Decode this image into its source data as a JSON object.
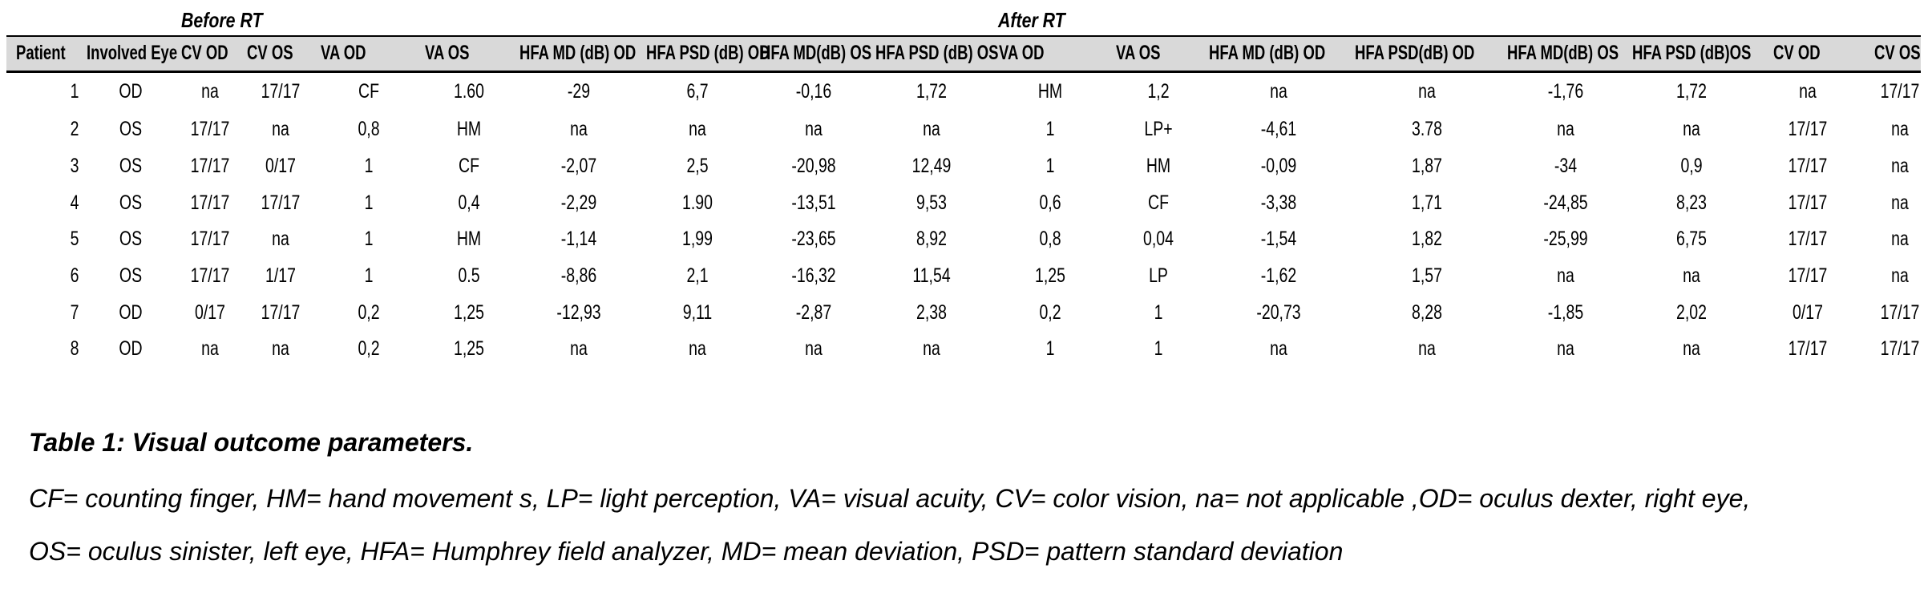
{
  "groups": {
    "before": "Before RT",
    "after": "After RT"
  },
  "headers": [
    "Patient",
    "Involved Eye",
    "CV OD",
    "CV OS",
    "VA OD",
    "VA OS",
    "HFA MD (dB) OD",
    "HFA PSD (dB) OD",
    "HFA MD(dB) OS",
    "HFA PSD (dB) OS",
    "VA  OD",
    "VA  OS",
    "HFA MD (dB) OD",
    "HFA PSD(dB) OD",
    "HFA MD(dB) OS",
    "HFA PSD (dB)OS",
    "CV OD",
    "CV OS"
  ],
  "rows": [
    [
      "1",
      "OD",
      "na",
      "17/17",
      "CF",
      "1.60",
      "-29",
      "6,7",
      "-0,16",
      "1,72",
      "HM",
      "1,2",
      "na",
      "na",
      "-1,76",
      "1,72",
      "na",
      "17/17"
    ],
    [
      "2",
      "OS",
      "17/17",
      "na",
      "0,8",
      "HM",
      "na",
      "na",
      "na",
      "na",
      "1",
      "LP+",
      "-4,61",
      "3.78",
      "na",
      "na",
      "17/17",
      "na"
    ],
    [
      "3",
      "OS",
      "17/17",
      "0/17",
      "1",
      "CF",
      "-2,07",
      "2,5",
      "-20,98",
      "12,49",
      "1",
      "HM",
      "-0,09",
      "1,87",
      "-34",
      "0,9",
      "17/17",
      "na"
    ],
    [
      "4",
      "OS",
      "17/17",
      "17/17",
      "1",
      "0,4",
      "-2,29",
      "1.90",
      "-13,51",
      "9,53",
      "0,6",
      "CF",
      "-3,38",
      "1,71",
      "-24,85",
      "8,23",
      "17/17",
      "na"
    ],
    [
      "5",
      "OS",
      "17/17",
      "na",
      "1",
      "HM",
      "-1,14",
      "1,99",
      "-23,65",
      "8,92",
      "0,8",
      "0,04",
      "-1,54",
      "1,82",
      "-25,99",
      "6,75",
      "17/17",
      "na"
    ],
    [
      "6",
      "OS",
      "17/17",
      "1/17",
      "1",
      "0.5",
      "-8,86",
      "2,1",
      "-16,32",
      "11,54",
      "1,25",
      "LP",
      "-1,62",
      "1,57",
      "na",
      "na",
      "17/17",
      "na"
    ],
    [
      "7",
      "OD",
      "0/17",
      "17/17",
      "0,2",
      "1,25",
      "-12,93",
      "9,11",
      "-2,87",
      "2,38",
      "0,2",
      "1",
      "-20,73",
      "8,28",
      "-1,85",
      "2,02",
      "0/17",
      "17/17"
    ],
    [
      "8",
      "OD",
      "na",
      "na",
      "0,2",
      "1,25",
      "na",
      "na",
      "na",
      "na",
      "1",
      "1",
      "na",
      "na",
      "na",
      "na",
      "17/17",
      "17/17"
    ]
  ],
  "caption": {
    "title": "Table 1: Visual outcome parameters.",
    "line1": "CF= counting finger, HM= hand movement s, LP= light perception, VA= visual acuity, CV= color vision, na= not applicable ,OD= oculus dexter, right eye,",
    "line2": "OS= oculus  sinister, left eye, HFA= Humphrey field analyzer, MD= mean deviation, PSD= pattern standard deviation"
  }
}
